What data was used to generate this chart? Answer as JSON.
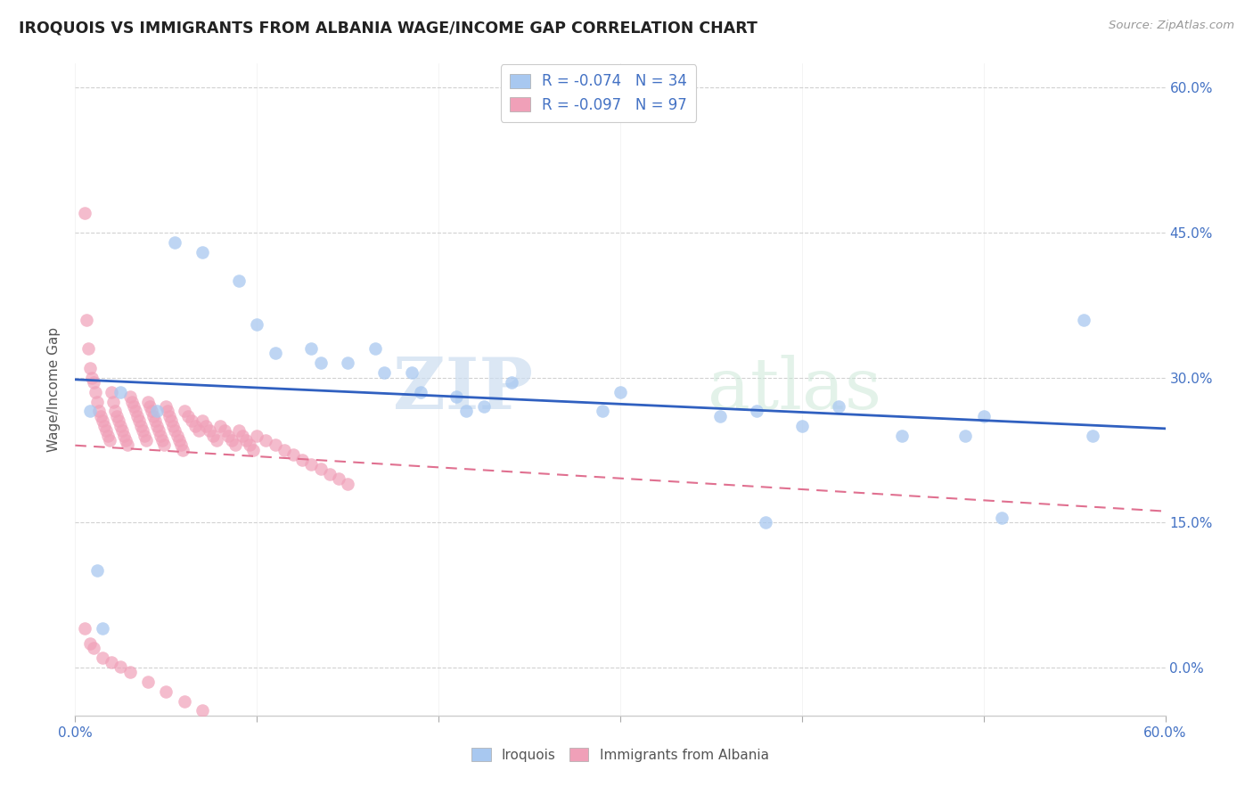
{
  "title": "IROQUOIS VS IMMIGRANTS FROM ALBANIA WAGE/INCOME GAP CORRELATION CHART",
  "source": "Source: ZipAtlas.com",
  "ylabel": "Wage/Income Gap",
  "xlim": [
    0.0,
    0.6
  ],
  "ylim": [
    0.0,
    0.625
  ],
  "ytick_vals": [
    0.0,
    0.15,
    0.3,
    0.45,
    0.6
  ],
  "yticklabels_right": [
    "0.0%",
    "15.0%",
    "30.0%",
    "45.0%",
    "60.0%"
  ],
  "xtick_vals": [
    0.0,
    0.1,
    0.2,
    0.3,
    0.4,
    0.5,
    0.6
  ],
  "xticklabels_ends": [
    "0.0%",
    "60.0%"
  ],
  "iroquois_R": -0.074,
  "iroquois_N": 34,
  "albania_R": -0.097,
  "albania_N": 97,
  "iroquois_color": "#a8c8f0",
  "albania_color": "#f0a0b8",
  "iroquois_line_color": "#3060c0",
  "albania_line_color": "#e07090",
  "legend_label_iroquois": "Iroquois",
  "legend_label_albania": "Immigrants from Albania",
  "watermark_zip": "ZIP",
  "watermark_atlas": "atlas",
  "background_color": "#ffffff",
  "grid_color": "#cccccc",
  "iroquois_x": [
    0.008,
    0.012,
    0.025,
    0.055,
    0.07,
    0.09,
    0.1,
    0.11,
    0.13,
    0.135,
    0.15,
    0.165,
    0.17,
    0.185,
    0.19,
    0.21,
    0.215,
    0.225,
    0.24,
    0.29,
    0.3,
    0.355,
    0.375,
    0.4,
    0.42,
    0.455,
    0.49,
    0.5,
    0.51,
    0.555,
    0.56,
    0.015,
    0.045,
    0.38
  ],
  "iroquois_y": [
    0.265,
    0.1,
    0.285,
    0.44,
    0.43,
    0.4,
    0.355,
    0.325,
    0.33,
    0.315,
    0.315,
    0.33,
    0.305,
    0.305,
    0.285,
    0.28,
    0.265,
    0.27,
    0.295,
    0.265,
    0.285,
    0.26,
    0.265,
    0.25,
    0.27,
    0.24,
    0.24,
    0.26,
    0.155,
    0.36,
    0.24,
    0.04,
    0.265,
    0.15
  ],
  "albania_x": [
    0.005,
    0.006,
    0.007,
    0.008,
    0.009,
    0.01,
    0.011,
    0.012,
    0.013,
    0.014,
    0.015,
    0.016,
    0.017,
    0.018,
    0.019,
    0.02,
    0.021,
    0.022,
    0.023,
    0.024,
    0.025,
    0.026,
    0.027,
    0.028,
    0.029,
    0.03,
    0.031,
    0.032,
    0.033,
    0.034,
    0.035,
    0.036,
    0.037,
    0.038,
    0.039,
    0.04,
    0.041,
    0.042,
    0.043,
    0.044,
    0.045,
    0.046,
    0.047,
    0.048,
    0.049,
    0.05,
    0.051,
    0.052,
    0.053,
    0.054,
    0.055,
    0.056,
    0.057,
    0.058,
    0.059,
    0.06,
    0.062,
    0.064,
    0.066,
    0.068,
    0.07,
    0.072,
    0.074,
    0.076,
    0.078,
    0.08,
    0.082,
    0.084,
    0.086,
    0.088,
    0.09,
    0.092,
    0.094,
    0.096,
    0.098,
    0.1,
    0.105,
    0.11,
    0.115,
    0.12,
    0.125,
    0.13,
    0.135,
    0.14,
    0.145,
    0.15,
    0.005,
    0.008,
    0.01,
    0.015,
    0.02,
    0.025,
    0.03,
    0.04,
    0.05,
    0.06,
    0.07
  ],
  "albania_y": [
    0.47,
    0.36,
    0.33,
    0.31,
    0.3,
    0.295,
    0.285,
    0.275,
    0.265,
    0.26,
    0.255,
    0.25,
    0.245,
    0.24,
    0.235,
    0.285,
    0.275,
    0.265,
    0.26,
    0.255,
    0.25,
    0.245,
    0.24,
    0.235,
    0.23,
    0.28,
    0.275,
    0.27,
    0.265,
    0.26,
    0.255,
    0.25,
    0.245,
    0.24,
    0.235,
    0.275,
    0.27,
    0.265,
    0.26,
    0.255,
    0.25,
    0.245,
    0.24,
    0.235,
    0.23,
    0.27,
    0.265,
    0.26,
    0.255,
    0.25,
    0.245,
    0.24,
    0.235,
    0.23,
    0.225,
    0.265,
    0.26,
    0.255,
    0.25,
    0.245,
    0.255,
    0.25,
    0.245,
    0.24,
    0.235,
    0.25,
    0.245,
    0.24,
    0.235,
    0.23,
    0.245,
    0.24,
    0.235,
    0.23,
    0.225,
    0.24,
    0.235,
    0.23,
    0.225,
    0.22,
    0.215,
    0.21,
    0.205,
    0.2,
    0.195,
    0.19,
    0.04,
    0.025,
    0.02,
    0.01,
    0.005,
    0.001,
    -0.005,
    -0.015,
    -0.025,
    -0.035,
    -0.045
  ]
}
